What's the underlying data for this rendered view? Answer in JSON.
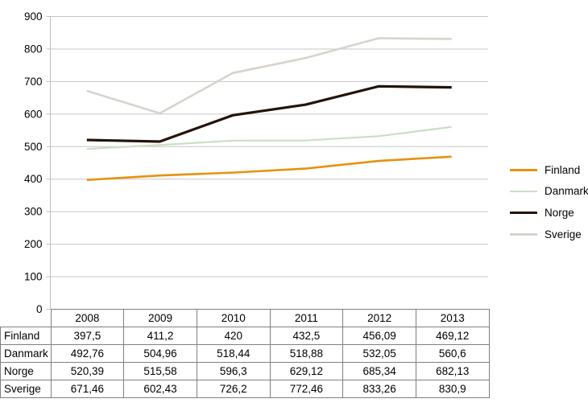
{
  "chart_data": {
    "type": "line",
    "title": "",
    "categories": [
      "2008",
      "2009",
      "2010",
      "2011",
      "2012",
      "2013"
    ],
    "series": [
      {
        "name": "Finland",
        "color": "#E8910F",
        "values": [
          397.5,
          411.2,
          420,
          432.5,
          456.09,
          469.12
        ]
      },
      {
        "name": "Danmark",
        "color": "#C9DFC5",
        "values": [
          492.76,
          504.96,
          518.44,
          518.88,
          532.05,
          560.6
        ]
      },
      {
        "name": "Norge",
        "color": "#231309",
        "values": [
          520.39,
          515.58,
          596.3,
          629.12,
          685.34,
          682.13
        ]
      },
      {
        "name": "Sverige",
        "color": "#D8D3CC",
        "values": [
          671.46,
          602.43,
          726.2,
          772.46,
          833.26,
          830.9
        ]
      }
    ],
    "ylim": [
      0,
      900
    ],
    "yticks": [
      0,
      100,
      200,
      300,
      400,
      500,
      600,
      700,
      800,
      900
    ],
    "grid": true,
    "legend_position": "right"
  },
  "table": {
    "header": [
      "2008",
      "2009",
      "2010",
      "2011",
      "2012",
      "2013"
    ],
    "rows": [
      {
        "label": "Finland",
        "values": [
          "397,5",
          "411,2",
          "420",
          "432,5",
          "456,09",
          "469,12"
        ]
      },
      {
        "label": "Danmark",
        "values": [
          "492,76",
          "504,96",
          "518,44",
          "518,88",
          "532,05",
          "560,6"
        ]
      },
      {
        "label": "Norge",
        "values": [
          "520,39",
          "515,58",
          "596,3",
          "629,12",
          "685,34",
          "682,13"
        ]
      },
      {
        "label": "Sverige",
        "values": [
          "671,46",
          "602,43",
          "726,2",
          "772,46",
          "833,26",
          "830,9"
        ]
      }
    ]
  },
  "legend": {
    "items": [
      "Finland",
      "Danmark",
      "Norge",
      "Sverige"
    ]
  },
  "colors": {
    "gridline": "#C6C6C6",
    "axis": "#BFBFBF",
    "table_border": "#7F7F7F",
    "text": "#000000",
    "background": "#FFFFFF"
  }
}
